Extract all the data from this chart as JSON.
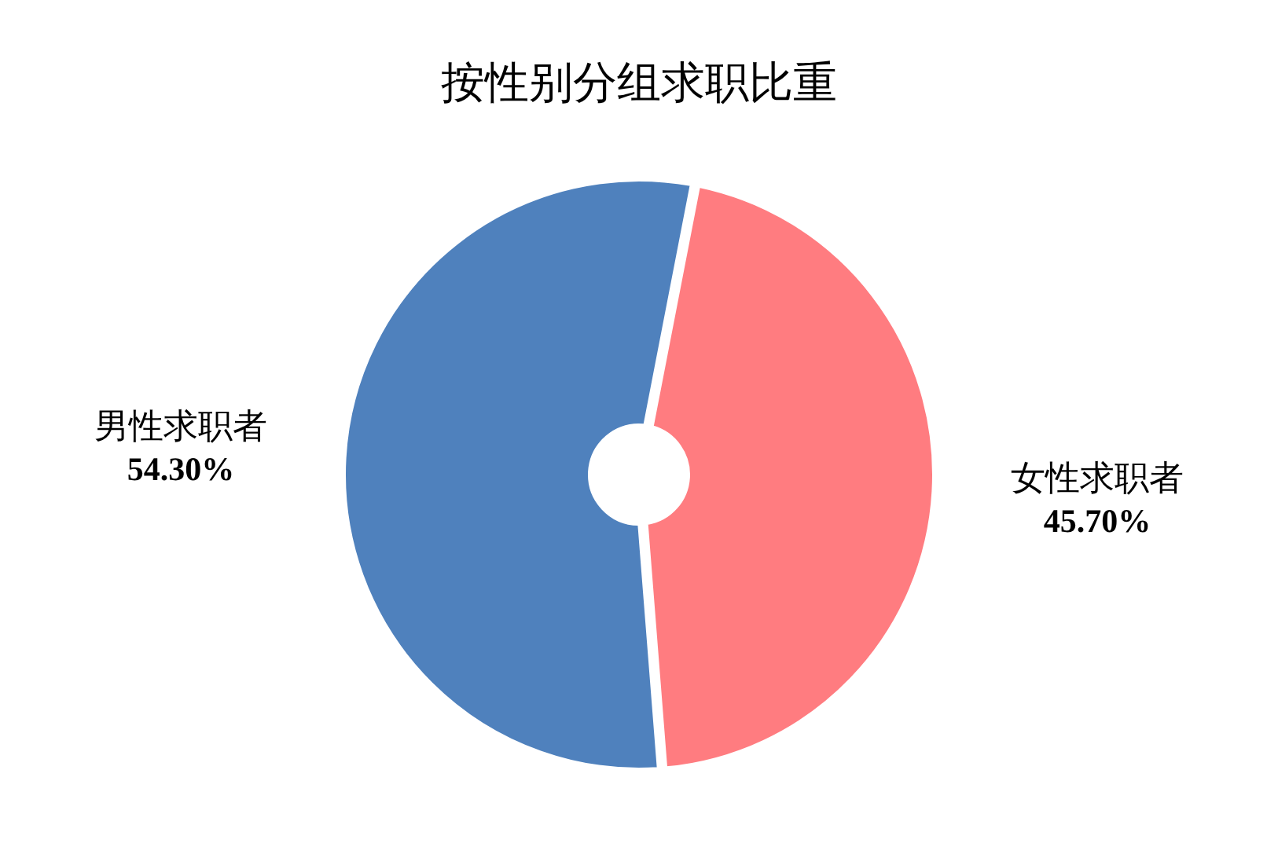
{
  "chart_data": {
    "type": "donut",
    "title": "按性别分组求职比重",
    "categories": [
      "男性求职者",
      "女性求职者"
    ],
    "values": [
      54.3,
      45.7
    ],
    "colors": [
      "#4f81bd",
      "#ff7c80"
    ],
    "value_labels": [
      "54.30%",
      "45.70%"
    ],
    "legend": false
  }
}
